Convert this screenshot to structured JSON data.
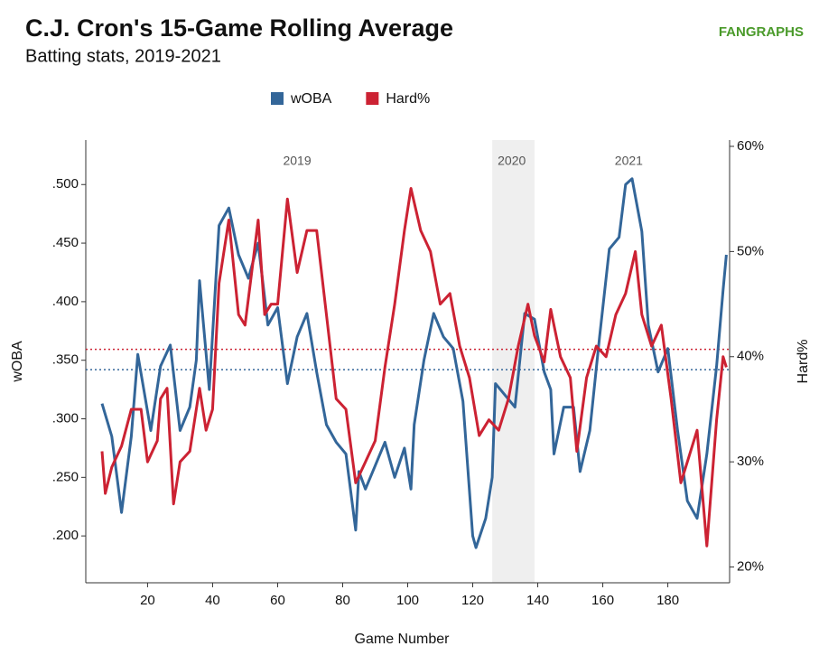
{
  "chart_data": {
    "type": "line",
    "title": "C.J. Cron's 15-Game Rolling Average",
    "subtitle": "Batting stats, 2019-2021",
    "logo": "FANGRAPHS",
    "xlabel": "Game Number",
    "ylabel": "wOBA",
    "y2label": "Hard%",
    "xlim": [
      1,
      199
    ],
    "xticks": [
      20,
      40,
      60,
      80,
      100,
      120,
      140,
      160,
      180
    ],
    "ylim": [
      0.16,
      0.538
    ],
    "yticks": [
      {
        "value": 0.2,
        "label": ".200"
      },
      {
        "value": 0.25,
        "label": ".250"
      },
      {
        "value": 0.3,
        "label": ".300"
      },
      {
        "value": 0.35,
        "label": ".350"
      },
      {
        "value": 0.4,
        "label": ".400"
      },
      {
        "value": 0.45,
        "label": ".450"
      },
      {
        "value": 0.5,
        "label": ".500"
      }
    ],
    "y2lim": [
      18.5,
      60.6
    ],
    "y2ticks": [
      {
        "value": 20,
        "label": "20%"
      },
      {
        "value": 30,
        "label": "30%"
      },
      {
        "value": 40,
        "label": "40%"
      },
      {
        "value": 50,
        "label": "50%"
      },
      {
        "value": 60,
        "label": "60%"
      }
    ],
    "shade": [
      126,
      139
    ],
    "annotations": [
      {
        "text": "2019",
        "x": 66
      },
      {
        "text": "2020",
        "x": 132
      },
      {
        "text": "2021",
        "x": 168
      }
    ],
    "reference_lines": [
      {
        "axis": "y",
        "value": 0.342,
        "color": "#336699"
      },
      {
        "axis": "y2",
        "value": 40.7,
        "color": "#cc2233"
      }
    ],
    "series": [
      {
        "name": "wOBA",
        "color": "#336699",
        "x": [
          6,
          9,
          12,
          15,
          17,
          21,
          24,
          27,
          30,
          33,
          35,
          36,
          39,
          42,
          45,
          48,
          51,
          54,
          57,
          60,
          63,
          66,
          69,
          72,
          75,
          78,
          81,
          84,
          85,
          87,
          90,
          93,
          96,
          99,
          101,
          102,
          105,
          108,
          111,
          114,
          117,
          120,
          121,
          124,
          126,
          127,
          130,
          133,
          136,
          139,
          142,
          144,
          145,
          148,
          151,
          153,
          156,
          159,
          162,
          165,
          167,
          169,
          172,
          174,
          177,
          180,
          183,
          186,
          189,
          192,
          195,
          197,
          198
        ],
        "values": [
          0.313,
          0.285,
          0.22,
          0.285,
          0.355,
          0.29,
          0.345,
          0.363,
          0.29,
          0.31,
          0.35,
          0.418,
          0.325,
          0.465,
          0.48,
          0.44,
          0.42,
          0.45,
          0.38,
          0.395,
          0.33,
          0.37,
          0.39,
          0.34,
          0.295,
          0.28,
          0.27,
          0.205,
          0.255,
          0.24,
          0.26,
          0.28,
          0.25,
          0.275,
          0.24,
          0.295,
          0.35,
          0.39,
          0.37,
          0.36,
          0.315,
          0.2,
          0.19,
          0.215,
          0.25,
          0.33,
          0.32,
          0.31,
          0.39,
          0.385,
          0.34,
          0.325,
          0.27,
          0.31,
          0.31,
          0.255,
          0.29,
          0.37,
          0.445,
          0.455,
          0.5,
          0.505,
          0.46,
          0.38,
          0.34,
          0.36,
          0.29,
          0.23,
          0.215,
          0.27,
          0.345,
          0.41,
          0.44
        ]
      },
      {
        "name": "Hard%",
        "color": "#cc2233",
        "axis": "y2",
        "x": [
          6,
          7,
          9,
          12,
          15,
          18,
          20,
          23,
          24,
          26,
          28,
          30,
          33,
          36,
          38,
          40,
          42,
          45,
          48,
          50,
          52,
          54,
          56,
          58,
          60,
          63,
          66,
          69,
          72,
          75,
          78,
          81,
          84,
          87,
          90,
          93,
          96,
          99,
          101,
          104,
          107,
          110,
          113,
          116,
          119,
          122,
          125,
          128,
          131,
          134,
          137,
          139,
          142,
          144,
          147,
          150,
          152,
          155,
          158,
          161,
          164,
          167,
          170,
          172,
          175,
          178,
          181,
          184,
          186,
          189,
          192,
          195,
          197,
          198
        ],
        "values": [
          31,
          27,
          29.5,
          31.5,
          35,
          35,
          30,
          32,
          36,
          37,
          26,
          30,
          31,
          37,
          33,
          35,
          47,
          53,
          44,
          43,
          48,
          53,
          44,
          45,
          45,
          55,
          48,
          52,
          52,
          44,
          36,
          35,
          28,
          30,
          32,
          39,
          45,
          52,
          56,
          52,
          50,
          45,
          46,
          41,
          38,
          32.5,
          34,
          33,
          36,
          41,
          45,
          42,
          39.5,
          44.5,
          40,
          38,
          31,
          38,
          41,
          40,
          44,
          46,
          50,
          44,
          41,
          43,
          36,
          28,
          30,
          33,
          22,
          34,
          40,
          39
        ]
      }
    ]
  }
}
